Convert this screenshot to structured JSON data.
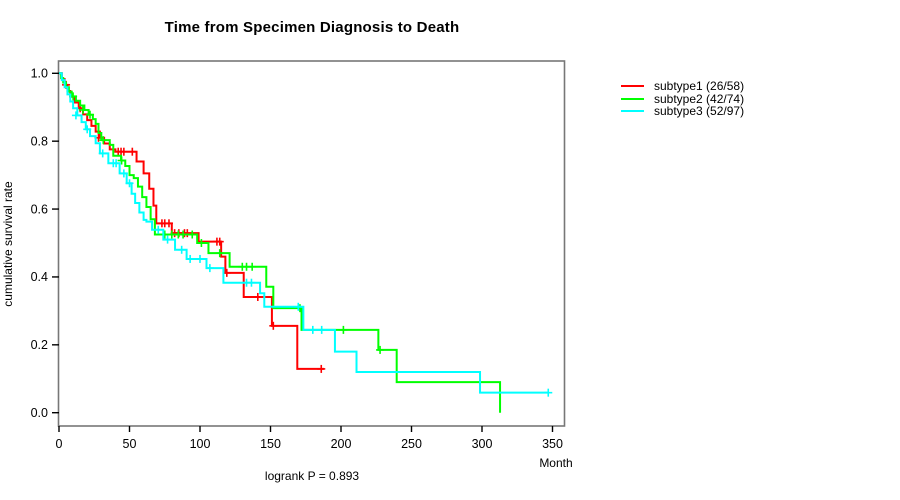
{
  "chart_data": {
    "type": "line",
    "chart_kind": "kaplan_meier_step_survival",
    "title": "Time from Specimen Diagnosis to Death",
    "xlabel": "Month",
    "ylabel": "cumulative survival rate",
    "annotation": "logrank P = 0.893",
    "xlim": [
      0,
      358
    ],
    "ylim": [
      0.0,
      1.0
    ],
    "grid": false,
    "legend_position": "right-outside",
    "x_ticks": [
      0,
      50,
      100,
      150,
      200,
      250,
      300,
      350
    ],
    "y_tick_labels": [
      "0.0",
      "0.2",
      "0.4",
      "0.6",
      "0.8",
      "1.0"
    ],
    "axis_box_color": "#777777",
    "series": [
      {
        "name": "subtype1 (26/58)",
        "color": "#FF0000",
        "end_month": 188,
        "steps": [
          [
            0,
            1.0
          ],
          [
            2,
            0.983
          ],
          [
            4,
            0.966
          ],
          [
            6,
            0.948
          ],
          [
            8,
            0.931
          ],
          [
            11,
            0.914
          ],
          [
            14,
            0.897
          ],
          [
            17,
            0.879
          ],
          [
            20,
            0.862
          ],
          [
            23,
            0.845
          ],
          [
            26,
            0.828
          ],
          [
            29,
            0.81
          ],
          [
            32,
            0.793
          ],
          [
            36,
            0.776
          ],
          [
            40,
            0.769
          ],
          [
            55,
            0.74
          ],
          [
            60,
            0.705
          ],
          [
            64,
            0.66
          ],
          [
            67,
            0.61
          ],
          [
            69,
            0.558
          ],
          [
            80,
            0.529
          ],
          [
            99,
            0.504
          ],
          [
            115,
            0.46
          ],
          [
            118,
            0.412
          ],
          [
            131,
            0.341
          ],
          [
            151,
            0.256
          ],
          [
            169,
            0.129
          ]
        ],
        "censors": [
          [
            5,
            0.966
          ],
          [
            15,
            0.897
          ],
          [
            28,
            0.81
          ],
          [
            42,
            0.769
          ],
          [
            44,
            0.769
          ],
          [
            46,
            0.769
          ],
          [
            52,
            0.769
          ],
          [
            73,
            0.558
          ],
          [
            75,
            0.558
          ],
          [
            78,
            0.558
          ],
          [
            82,
            0.529
          ],
          [
            85,
            0.529
          ],
          [
            89,
            0.529
          ],
          [
            91,
            0.529
          ],
          [
            112,
            0.504
          ],
          [
            114,
            0.504
          ],
          [
            119,
            0.412
          ],
          [
            141,
            0.341
          ],
          [
            152,
            0.256
          ],
          [
            186,
            0.129
          ]
        ]
      },
      {
        "name": "subtype2 (42/74)",
        "color": "#00FF00",
        "end_month": 312.8,
        "steps": [
          [
            0,
            1.0
          ],
          [
            1.5,
            0.986
          ],
          [
            3,
            0.973
          ],
          [
            5,
            0.959
          ],
          [
            7,
            0.946
          ],
          [
            9,
            0.932
          ],
          [
            12,
            0.919
          ],
          [
            15,
            0.905
          ],
          [
            18,
            0.892
          ],
          [
            21,
            0.878
          ],
          [
            24,
            0.865
          ],
          [
            26,
            0.851
          ],
          [
            28,
            0.824
          ],
          [
            30,
            0.803
          ],
          [
            36,
            0.789
          ],
          [
            38.5,
            0.757
          ],
          [
            44,
            0.743
          ],
          [
            47,
            0.727
          ],
          [
            50,
            0.7
          ],
          [
            53,
            0.691
          ],
          [
            56,
            0.666
          ],
          [
            59,
            0.635
          ],
          [
            62,
            0.606
          ],
          [
            65,
            0.57
          ],
          [
            68,
            0.525
          ],
          [
            98,
            0.5
          ],
          [
            106,
            0.47
          ],
          [
            121,
            0.43
          ],
          [
            147,
            0.371
          ],
          [
            152,
            0.308
          ],
          [
            172,
            0.244
          ],
          [
            226.5,
            0.185
          ],
          [
            239.5,
            0.09
          ],
          [
            312.8,
            0.0
          ]
        ],
        "censors": [
          [
            10,
            0.932
          ],
          [
            17,
            0.892
          ],
          [
            22,
            0.878
          ],
          [
            31.4,
            0.803
          ],
          [
            44.4,
            0.743
          ],
          [
            75,
            0.525
          ],
          [
            80,
            0.525
          ],
          [
            84.6,
            0.525
          ],
          [
            88,
            0.525
          ],
          [
            94.5,
            0.525
          ],
          [
            101,
            0.5
          ],
          [
            114,
            0.47
          ],
          [
            130,
            0.43
          ],
          [
            133,
            0.43
          ],
          [
            137,
            0.43
          ],
          [
            170.9,
            0.308
          ],
          [
            201.7,
            0.244
          ],
          [
            227.7,
            0.185
          ]
        ]
      },
      {
        "name": "subtype3 (52/97)",
        "color": "#00FFFF",
        "end_month": 347,
        "steps": [
          [
            0,
            1.0
          ],
          [
            2,
            0.98
          ],
          [
            4,
            0.959
          ],
          [
            6,
            0.938
          ],
          [
            8,
            0.917
          ],
          [
            10,
            0.897
          ],
          [
            13,
            0.876
          ],
          [
            16,
            0.856
          ],
          [
            19,
            0.835
          ],
          [
            22,
            0.815
          ],
          [
            26,
            0.794
          ],
          [
            29,
            0.764
          ],
          [
            35,
            0.735
          ],
          [
            43,
            0.705
          ],
          [
            48,
            0.676
          ],
          [
            51.5,
            0.645
          ],
          [
            54,
            0.618
          ],
          [
            57,
            0.59
          ],
          [
            60,
            0.568
          ],
          [
            62,
            0.563
          ],
          [
            66,
            0.539
          ],
          [
            74,
            0.51
          ],
          [
            82.3,
            0.48
          ],
          [
            90.5,
            0.453
          ],
          [
            104.6,
            0.426
          ],
          [
            116.6,
            0.383
          ],
          [
            142.6,
            0.352
          ],
          [
            145.6,
            0.312
          ],
          [
            173.3,
            0.244
          ],
          [
            195.7,
            0.18
          ],
          [
            211,
            0.12
          ],
          [
            298.6,
            0.059
          ]
        ],
        "censors": [
          [
            12,
            0.876
          ],
          [
            20,
            0.835
          ],
          [
            31,
            0.764
          ],
          [
            38.5,
            0.735
          ],
          [
            40.5,
            0.735
          ],
          [
            46,
            0.705
          ],
          [
            50,
            0.676
          ],
          [
            70.4,
            0.539
          ],
          [
            77,
            0.51
          ],
          [
            87,
            0.48
          ],
          [
            93,
            0.453
          ],
          [
            100,
            0.453
          ],
          [
            107,
            0.426
          ],
          [
            133,
            0.383
          ],
          [
            136.5,
            0.383
          ],
          [
            169.7,
            0.312
          ],
          [
            180,
            0.244
          ],
          [
            186.3,
            0.244
          ],
          [
            347,
            0.059
          ]
        ]
      }
    ]
  }
}
